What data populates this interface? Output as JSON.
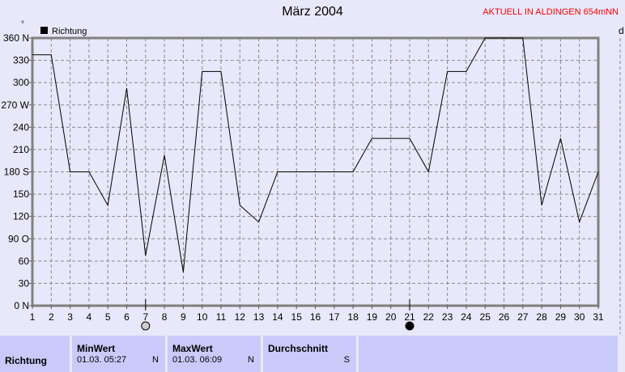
{
  "title": "März 2004",
  "station": "AKTUELL IN ALDINGEN 654mNN",
  "right_panel_label": "d",
  "chart_data": {
    "type": "line",
    "title": "März 2004",
    "legend": "Richtung",
    "ylabel": "°",
    "x": [
      1,
      2,
      3,
      4,
      5,
      6,
      7,
      8,
      9,
      10,
      11,
      12,
      13,
      14,
      15,
      16,
      17,
      18,
      19,
      20,
      21,
      22,
      23,
      24,
      25,
      26,
      27,
      28,
      29,
      30,
      31
    ],
    "series": [
      {
        "name": "Richtung",
        "values": [
          337.5,
          337.5,
          180,
          180,
          135,
          292.5,
          67.5,
          202.5,
          45,
          315,
          315,
          135,
          112.5,
          180,
          180,
          180,
          180,
          180,
          225,
          225,
          225,
          180,
          315,
          315,
          360,
          360,
          360,
          135,
          225,
          112.5,
          180
        ]
      }
    ],
    "ylim": [
      0,
      360
    ],
    "xlim": [
      1,
      31
    ],
    "yticks": [
      "0  N",
      "30",
      "60",
      "90  O",
      "120",
      "150",
      "180 S",
      "210",
      "240",
      "270 W",
      "300",
      "330",
      "360 N"
    ],
    "grid": true,
    "color": "#000000",
    "moon_markers": [
      {
        "day": 7,
        "phase": "full-moon"
      },
      {
        "day": 21,
        "phase": "new-moon"
      }
    ]
  },
  "table": {
    "row_label": "Richtung",
    "columns": [
      {
        "header": "MinWert",
        "time": "01.03.  05:27",
        "value": "N"
      },
      {
        "header": "MaxWert",
        "time": "01.03.  06:09",
        "value": "N"
      },
      {
        "header": "Durchschnitt",
        "time": "",
        "value": "S"
      }
    ]
  }
}
